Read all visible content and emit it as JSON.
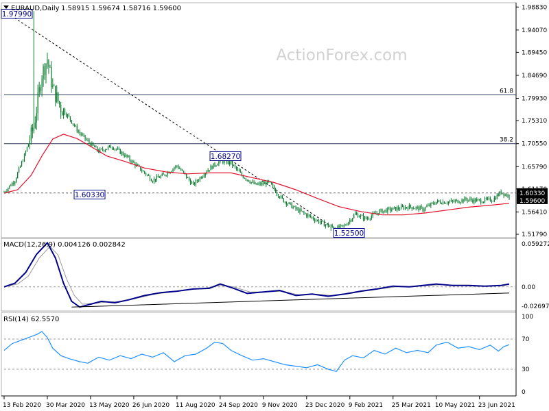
{
  "header": {
    "symbol": "EURAUD,Daily",
    "quotes": "1.58915 1.59674 1.58716 1.59600"
  },
  "watermark": "ActionForex.com",
  "macd_panel": {
    "label": "MACD(12,26,9) 0.004126 0.002842",
    "ticks": [
      "0.059272",
      "0.00",
      "-0.026978"
    ]
  },
  "rsi_panel": {
    "label": "RSI(14) 62.5570",
    "ticks": [
      "100",
      "70",
      "30",
      "0"
    ]
  },
  "annotations": {
    "high": "1.97990",
    "mid_high": "1.68270",
    "support": "1.60330",
    "low": "1.52500",
    "fib_618": "61.8",
    "fib_382": "38.2",
    "current_level": "1.60330",
    "current_price": "1.59600"
  },
  "colors": {
    "candle": "#0a7a2e",
    "ma": "#e0102a",
    "macd": "#00008b",
    "signal": "#9a9a9a",
    "rsi": "#1e90ff",
    "label_box": "#00008b",
    "marker": "#000000"
  },
  "chart_data": [
    {
      "type": "candlestick",
      "title": "EURAUD,Daily",
      "ylim": [
        1.5179,
        1.9915
      ],
      "y_ticks": [
        "1.98830",
        "1.94070",
        "1.89450",
        "1.84690",
        "1.79930",
        "1.75310",
        "1.70550",
        "1.65790",
        "1.61170",
        "1.56410",
        "1.51790"
      ],
      "x_ticks": [
        "13 Feb 2020",
        "30 Mar 2020",
        "13 May 2020",
        "26 Jun 2020",
        "11 Aug 2020",
        "24 Sep 2020",
        "9 Nov 2020",
        "23 Dec 2020",
        "9 Feb 2021",
        "25 Mar 2021",
        "10 May 2021",
        "23 Jun 2021"
      ],
      "x_tick_index": [
        0,
        32,
        64,
        96,
        128,
        160,
        192,
        224,
        256,
        288,
        320,
        352
      ],
      "num_bars": 375,
      "anchors_close": [
        [
          0,
          1.605
        ],
        [
          8,
          1.63
        ],
        [
          15,
          1.68
        ],
        [
          22,
          1.74
        ],
        [
          28,
          1.85
        ],
        [
          32,
          1.88
        ],
        [
          36,
          1.82
        ],
        [
          42,
          1.78
        ],
        [
          48,
          1.76
        ],
        [
          55,
          1.73
        ],
        [
          62,
          1.71
        ],
        [
          70,
          1.69
        ],
        [
          80,
          1.7
        ],
        [
          90,
          1.68
        ],
        [
          100,
          1.655
        ],
        [
          110,
          1.63
        ],
        [
          118,
          1.64
        ],
        [
          128,
          1.66
        ],
        [
          140,
          1.62
        ],
        [
          150,
          1.65
        ],
        [
          160,
          1.67
        ],
        [
          168,
          1.665
        ],
        [
          176,
          1.64
        ],
        [
          186,
          1.62
        ],
        [
          196,
          1.625
        ],
        [
          206,
          1.59
        ],
        [
          216,
          1.57
        ],
        [
          226,
          1.555
        ],
        [
          236,
          1.54
        ],
        [
          246,
          1.53
        ],
        [
          252,
          1.535
        ],
        [
          260,
          1.56
        ],
        [
          268,
          1.55
        ],
        [
          278,
          1.565
        ],
        [
          288,
          1.57
        ],
        [
          300,
          1.575
        ],
        [
          310,
          1.57
        ],
        [
          320,
          1.585
        ],
        [
          332,
          1.585
        ],
        [
          342,
          1.59
        ],
        [
          352,
          1.587
        ],
        [
          362,
          1.59
        ],
        [
          368,
          1.605
        ],
        [
          374,
          1.596
        ]
      ],
      "ma": [
        [
          0,
          1.603
        ],
        [
          10,
          1.61
        ],
        [
          20,
          1.64
        ],
        [
          28,
          1.68
        ],
        [
          36,
          1.715
        ],
        [
          44,
          1.725
        ],
        [
          54,
          1.716
        ],
        [
          64,
          1.7
        ],
        [
          76,
          1.68
        ],
        [
          90,
          1.668
        ],
        [
          104,
          1.655
        ],
        [
          120,
          1.647
        ],
        [
          136,
          1.643
        ],
        [
          152,
          1.645
        ],
        [
          168,
          1.645
        ],
        [
          184,
          1.635
        ],
        [
          200,
          1.625
        ],
        [
          216,
          1.61
        ],
        [
          232,
          1.592
        ],
        [
          248,
          1.575
        ],
        [
          264,
          1.565
        ],
        [
          280,
          1.558
        ],
        [
          296,
          1.558
        ],
        [
          312,
          1.562
        ],
        [
          328,
          1.568
        ],
        [
          344,
          1.574
        ],
        [
          360,
          1.578
        ],
        [
          374,
          1.582
        ]
      ],
      "trendline": [
        [
          0,
          1.9799
        ],
        [
          242,
          1.535
        ]
      ],
      "fib_levels": [
        {
          "label": "61.8",
          "value": 1.8065
        },
        {
          "label": "38.2",
          "value": 1.7055
        }
      ],
      "support_line": 1.6033,
      "labeled_points": [
        {
          "text": "1.97990",
          "x": 22,
          "y": 1.9799
        },
        {
          "text": "1.68270",
          "x": 160,
          "y": 1.6827
        },
        {
          "text": "1.60330",
          "x": 56,
          "y": 1.6033
        },
        {
          "text": "1.52500",
          "x": 242,
          "y": 1.525
        }
      ]
    },
    {
      "type": "line",
      "title": "MACD(12,26,9) 0.004126 0.002842",
      "ylim": [
        -0.0315,
        0.0633
      ],
      "series": [
        {
          "values": [
            [
              0,
              0.0
            ],
            [
              8,
              0.005
            ],
            [
              16,
              0.02
            ],
            [
              24,
              0.045
            ],
            [
              32,
              0.061
            ],
            [
              38,
              0.04
            ],
            [
              44,
              0.005
            ],
            [
              50,
              -0.02
            ],
            [
              56,
              -0.028
            ],
            [
              62,
              -0.025
            ],
            [
              72,
              -0.02
            ],
            [
              82,
              -0.022
            ],
            [
              92,
              -0.018
            ],
            [
              104,
              -0.012
            ],
            [
              116,
              -0.008
            ],
            [
              128,
              -0.006
            ],
            [
              140,
              -0.003
            ],
            [
              152,
              -0.002
            ],
            [
              160,
              0.004
            ],
            [
              170,
              -0.002
            ],
            [
              180,
              -0.009
            ],
            [
              192,
              -0.007
            ],
            [
              204,
              -0.005
            ],
            [
              216,
              -0.012
            ],
            [
              228,
              -0.01
            ],
            [
              240,
              -0.013
            ],
            [
              252,
              -0.01
            ],
            [
              264,
              -0.006
            ],
            [
              276,
              -0.003
            ],
            [
              288,
              0.001
            ],
            [
              300,
              0.0
            ],
            [
              310,
              0.002
            ],
            [
              320,
              0.004
            ],
            [
              332,
              0.002
            ],
            [
              344,
              0.002
            ],
            [
              356,
              0.001
            ],
            [
              368,
              0.002
            ],
            [
              374,
              0.004
            ]
          ]
        },
        {
          "values": [
            [
              0,
              0.0
            ],
            [
              10,
              0.004
            ],
            [
              18,
              0.015
            ],
            [
              26,
              0.04
            ],
            [
              34,
              0.056
            ],
            [
              40,
              0.044
            ],
            [
              46,
              0.012
            ],
            [
              52,
              -0.012
            ],
            [
              58,
              -0.024
            ],
            [
              66,
              -0.023
            ],
            [
              76,
              -0.021
            ],
            [
              88,
              -0.02
            ],
            [
              100,
              -0.015
            ],
            [
              112,
              -0.01
            ],
            [
              124,
              -0.007
            ],
            [
              136,
              -0.004
            ],
            [
              148,
              -0.002
            ],
            [
              160,
              0.002
            ],
            [
              170,
              0.0
            ],
            [
              182,
              -0.007
            ],
            [
              194,
              -0.007
            ],
            [
              206,
              -0.006
            ],
            [
              218,
              -0.011
            ],
            [
              230,
              -0.01
            ],
            [
              242,
              -0.012
            ],
            [
              254,
              -0.01
            ],
            [
              266,
              -0.006
            ],
            [
              278,
              -0.003
            ],
            [
              290,
              0.0
            ],
            [
              302,
              0.0
            ],
            [
              314,
              0.002
            ],
            [
              326,
              0.003
            ],
            [
              338,
              0.002
            ],
            [
              350,
              0.001
            ],
            [
              362,
              0.001
            ],
            [
              374,
              0.003
            ]
          ]
        }
      ],
      "trendline": [
        [
          50,
          -0.028
        ],
        [
          374,
          -0.0085
        ]
      ]
    },
    {
      "type": "line",
      "title": "RSI(14) 62.5570",
      "ylim": [
        0,
        100
      ],
      "levels": [
        30,
        70
      ],
      "values": [
        [
          0,
          55
        ],
        [
          6,
          64
        ],
        [
          12,
          68
        ],
        [
          18,
          72
        ],
        [
          24,
          76
        ],
        [
          28,
          80
        ],
        [
          32,
          72
        ],
        [
          36,
          58
        ],
        [
          42,
          48
        ],
        [
          48,
          44
        ],
        [
          56,
          40
        ],
        [
          62,
          38
        ],
        [
          70,
          46
        ],
        [
          78,
          42
        ],
        [
          86,
          48
        ],
        [
          94,
          44
        ],
        [
          102,
          50
        ],
        [
          110,
          46
        ],
        [
          118,
          52
        ],
        [
          126,
          40
        ],
        [
          134,
          48
        ],
        [
          142,
          50
        ],
        [
          150,
          58
        ],
        [
          156,
          66
        ],
        [
          162,
          64
        ],
        [
          168,
          55
        ],
        [
          176,
          48
        ],
        [
          184,
          42
        ],
        [
          192,
          44
        ],
        [
          200,
          40
        ],
        [
          208,
          36
        ],
        [
          216,
          34
        ],
        [
          224,
          32
        ],
        [
          232,
          36
        ],
        [
          240,
          30
        ],
        [
          246,
          27
        ],
        [
          252,
          42
        ],
        [
          258,
          48
        ],
        [
          266,
          45
        ],
        [
          274,
          55
        ],
        [
          282,
          50
        ],
        [
          290,
          58
        ],
        [
          298,
          52
        ],
        [
          306,
          55
        ],
        [
          314,
          52
        ],
        [
          320,
          62
        ],
        [
          328,
          66
        ],
        [
          336,
          58
        ],
        [
          344,
          60
        ],
        [
          352,
          56
        ],
        [
          360,
          62
        ],
        [
          366,
          54
        ],
        [
          370,
          60
        ],
        [
          374,
          62.557
        ]
      ]
    }
  ]
}
